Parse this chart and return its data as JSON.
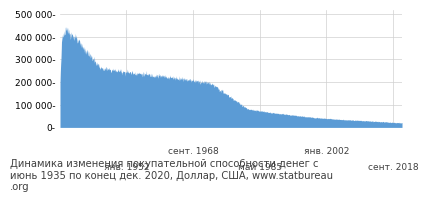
{
  "title": "Динамика изменения покупательной способности денег с\nиюнь 1935 по конец дек. 2020, Доллар, США, www.statbureau\n.org",
  "fill_color": "#5B9BD5",
  "background_color": "#FFFFFF",
  "grid_color": "#D0D0D0",
  "title_color": "#404040",
  "title_fontsize": 7.2,
  "tick_fontsize": 6.5,
  "ylim": [
    0,
    520000
  ],
  "yticks": [
    0,
    100000,
    200000,
    300000,
    400000,
    500000
  ],
  "xtick_labels_row1": [
    "",
    "сент. 1968",
    "",
    "янв. 2002",
    ""
  ],
  "xtick_labels_row2": [
    "янв. 1952",
    "",
    "май 1985",
    "",
    "сент. 2018"
  ],
  "start_year": 1935,
  "start_month": 6,
  "end_year": 2020,
  "end_month": 12
}
